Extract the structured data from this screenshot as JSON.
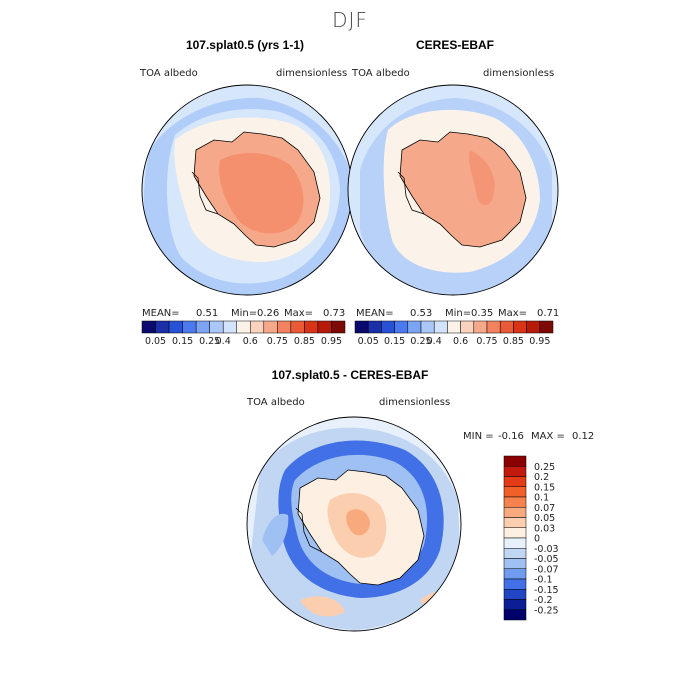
{
  "title": "DJF",
  "panels": [
    {
      "title": "107.splat0.5 (yrs 1-1)",
      "field_label": "TOA albedo",
      "units": "dimensionless",
      "mean_label": "MEAN=",
      "mean": "0.51",
      "min_label": "Min=",
      "min": "0.26",
      "max_label": "Max=",
      "max": "0.73"
    },
    {
      "title": "CERES-EBAF",
      "field_label": "TOA albedo",
      "units": "dimensionless",
      "mean_label": "MEAN=",
      "mean": "0.53",
      "min_label": "Min=",
      "min": "0.35",
      "max_label": "Max=",
      "max": "0.71"
    }
  ],
  "colorbar": {
    "ticks": [
      "0.05",
      "0.15",
      "0.25",
      "0.4",
      "0.6",
      "0.75",
      "0.85",
      "0.95"
    ],
    "colors": [
      "#0a0a6e",
      "#1a2fa8",
      "#2752d6",
      "#4b79ef",
      "#7ca4f4",
      "#a9c7f7",
      "#d3e3fb",
      "#fbf3ea",
      "#fbd2bd",
      "#f6a98a",
      "#f28260",
      "#ea5a37",
      "#d93418",
      "#b81a0a",
      "#7d0a05"
    ]
  },
  "diff_panel": {
    "title": "107.splat0.5 - CERES-EBAF",
    "field_label": "TOA albedo",
    "units": "dimensionless",
    "min_label": "MIN =",
    "min": "-0.16",
    "max_label": "MAX =",
    "max": "0.12",
    "ticks": [
      "0.25",
      "0.2",
      "0.15",
      "0.1",
      "0.07",
      "0.05",
      "0.03",
      "0",
      "-0.03",
      "-0.05",
      "-0.07",
      "-0.1",
      "-0.15",
      "-0.2",
      "-0.25"
    ],
    "colors": [
      "#8b0000",
      "#c21a0e",
      "#e23b16",
      "#f2602a",
      "#f6824d",
      "#f9a97e",
      "#fcceb0",
      "#fdefe2",
      "#e8f1fb",
      "#c1d6f3",
      "#9fc0f2",
      "#6f9cee",
      "#4270e6",
      "#2146c4",
      "#0b1e96",
      "#00006b"
    ]
  },
  "chart_data": {
    "type": "heatmap",
    "title": "DJF",
    "subplots": [
      {
        "title": "107.splat0.5 (yrs 1-1)",
        "variable": "TOA albedo",
        "units": "dimensionless",
        "mean": 0.51,
        "min": 0.26,
        "max": 0.73,
        "levels": [
          0.05,
          0.15,
          0.25,
          0.4,
          0.6,
          0.75,
          0.85,
          0.95
        ]
      },
      {
        "title": "CERES-EBAF",
        "variable": "TOA albedo",
        "units": "dimensionless",
        "mean": 0.53,
        "min": 0.35,
        "max": 0.71,
        "levels": [
          0.05,
          0.15,
          0.25,
          0.4,
          0.6,
          0.75,
          0.85,
          0.95
        ]
      },
      {
        "title": "107.splat0.5 - CERES-EBAF",
        "variable": "TOA albedo",
        "units": "dimensionless",
        "min": -0.16,
        "max": 0.12,
        "levels": [
          -0.25,
          -0.2,
          -0.15,
          -0.1,
          -0.07,
          -0.05,
          -0.03,
          0,
          0.03,
          0.05,
          0.07,
          0.1,
          0.15,
          0.2,
          0.25
        ]
      }
    ]
  }
}
